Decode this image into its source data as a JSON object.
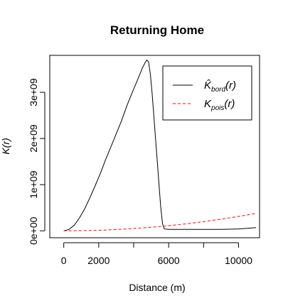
{
  "chart_data": {
    "type": "line",
    "title": "Returning Home",
    "xlabel": "Distance (m)",
    "ylabel": "K(r)",
    "xlim": [
      -800,
      11200
    ],
    "ylim": [
      -150000000,
      3800000000
    ],
    "x_ticks": [
      0,
      2000,
      6000,
      10000
    ],
    "x_tick_labels": [
      "0",
      "2000",
      "6000",
      "10000"
    ],
    "x_tick_marks_extra": [
      4000,
      8000
    ],
    "y_ticks": [
      0,
      1000000000,
      2000000000,
      3000000000
    ],
    "y_tick_labels": [
      "0e+00",
      "1e+09",
      "2e+09",
      "3e+09"
    ],
    "legend": {
      "position": "top-right",
      "entries": [
        {
          "main": "K̂",
          "sub": "bord",
          "suffix": "(r)",
          "color": "#000000",
          "dash": "solid"
        },
        {
          "main": "K",
          "sub": "pois",
          "suffix": "(r)",
          "color": "#ff0000",
          "dash": "dashed"
        }
      ]
    },
    "series": [
      {
        "color": "#000000",
        "dash": "solid",
        "x": [
          0,
          300,
          600,
          900,
          1200,
          1500,
          1800,
          2100,
          2400,
          2700,
          3000,
          3300,
          3600,
          3900,
          4200,
          4500,
          4650,
          4750,
          4850,
          4950,
          5050,
          5150,
          5250,
          5350,
          5450,
          5550,
          5650,
          5750,
          6000,
          7000,
          8000,
          9000,
          10000,
          11000
        ],
        "y": [
          0,
          30000000,
          120000000,
          280000000,
          480000000,
          720000000,
          980000000,
          1250000000,
          1550000000,
          1820000000,
          2100000000,
          2380000000,
          2700000000,
          2980000000,
          3250000000,
          3530000000,
          3640000000,
          3700000000,
          3660000000,
          3400000000,
          3000000000,
          2500000000,
          2000000000,
          1500000000,
          1000000000,
          500000000,
          150000000,
          40000000,
          30000000,
          30000000,
          30000000,
          30000000,
          40000000,
          70000000
        ]
      },
      {
        "color": "#ff0000",
        "dash": "dashed",
        "x": [
          0,
          1000,
          2000,
          3000,
          4000,
          5000,
          6000,
          7000,
          8000,
          9000,
          10000,
          11000
        ],
        "y": [
          0,
          3000000,
          12000000,
          28000000,
          50000000,
          78000000,
          112000000,
          152000000,
          199000000,
          252000000,
          311000000,
          376000000
        ]
      }
    ]
  }
}
